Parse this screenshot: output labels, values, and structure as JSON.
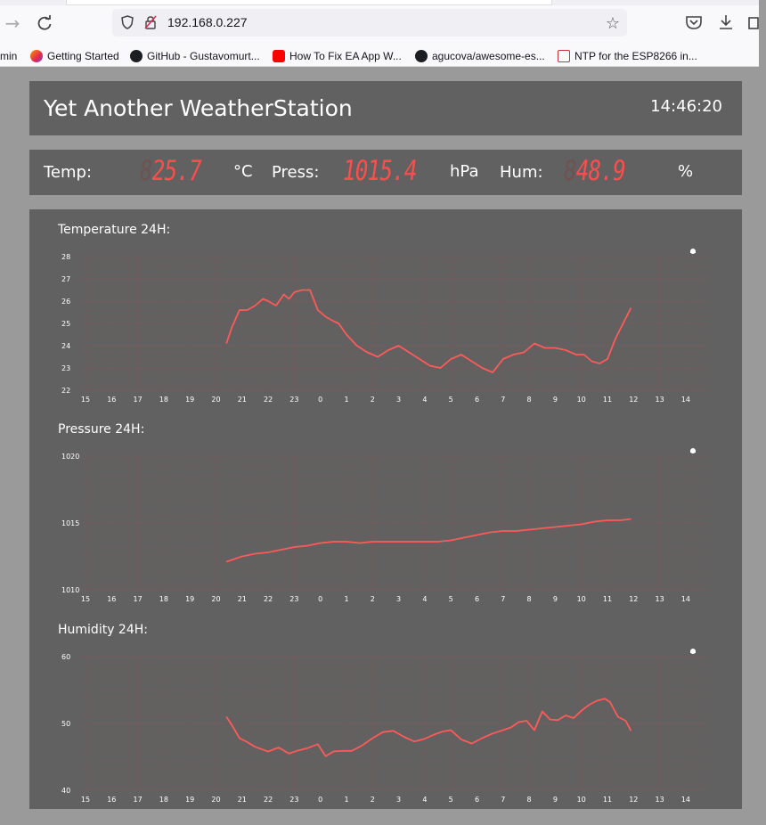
{
  "browser": {
    "url": "192.168.0.227",
    "bookmarks": [
      {
        "label": "min",
        "icon": "none"
      },
      {
        "label": "Getting Started",
        "icon": "firefox-icon"
      },
      {
        "label": "GitHub - Gustavomurt...",
        "icon": "github-icon"
      },
      {
        "label": "How To Fix EA App W...",
        "icon": "youtube-icon"
      },
      {
        "label": "agucova/awesome-es...",
        "icon": "github-icon"
      },
      {
        "label": "NTP for the ESP8266 in...",
        "icon": "site-icon"
      }
    ]
  },
  "app": {
    "title": "Yet Another WeatherStation",
    "time": "14:46:20"
  },
  "readings": {
    "temp": {
      "label": "Temp:",
      "ghost": "8",
      "value": "25.7",
      "unit": "°C"
    },
    "press": {
      "label": "Press:",
      "ghost": "",
      "value": "1015.4",
      "unit": "hPa"
    },
    "hum": {
      "label": "Hum:",
      "ghost": "8",
      "value": "48.9",
      "unit": "%"
    }
  },
  "colors": {
    "line": "#ff5a5a",
    "panel": "#616161",
    "page": "#9a9a9a",
    "grid": "#7a5a5a"
  },
  "hours": [
    "15",
    "16",
    "17",
    "18",
    "19",
    "20",
    "21",
    "22",
    "23",
    "0",
    "1",
    "2",
    "3",
    "4",
    "5",
    "6",
    "7",
    "8",
    "9",
    "10",
    "11",
    "12",
    "13",
    "14"
  ],
  "chart_data": [
    {
      "type": "line",
      "title": "Temperature 24H:",
      "x_labels": [
        "15",
        "16",
        "17",
        "18",
        "19",
        "20",
        "21",
        "22",
        "23",
        "0",
        "1",
        "2",
        "3",
        "4",
        "5",
        "6",
        "7",
        "8",
        "9",
        "10",
        "11",
        "12",
        "13",
        "14"
      ],
      "ylim": [
        22,
        28
      ],
      "yticks": [
        22,
        23,
        24,
        25,
        26,
        27,
        28
      ],
      "grid": true,
      "x": [
        20.4,
        20.6,
        20.9,
        21.2,
        21.5,
        21.8,
        22.0,
        22.3,
        22.6,
        22.8,
        23.0,
        23.3,
        23.6,
        23.9,
        24.2,
        24.5,
        24.7,
        25.0,
        25.4,
        25.8,
        26.2,
        26.6,
        27.0,
        27.4,
        27.8,
        28.2,
        28.6,
        29.0,
        29.4,
        29.8,
        30.2,
        30.6,
        31.0,
        31.4,
        31.8,
        32.2,
        32.6,
        33.0,
        33.4,
        33.8,
        34.1,
        34.4,
        34.7,
        35.0,
        35.3,
        35.6,
        35.9
      ],
      "y": [
        24.1,
        24.8,
        25.6,
        25.6,
        25.8,
        26.1,
        26.0,
        25.8,
        26.3,
        26.1,
        26.4,
        26.5,
        26.5,
        25.6,
        25.3,
        25.1,
        25.0,
        24.5,
        24.0,
        23.7,
        23.5,
        23.8,
        24.0,
        23.7,
        23.4,
        23.1,
        23.0,
        23.4,
        23.6,
        23.3,
        23.0,
        22.8,
        23.4,
        23.6,
        23.7,
        24.1,
        23.9,
        23.9,
        23.8,
        23.6,
        23.6,
        23.3,
        23.2,
        23.4,
        24.3,
        25.0,
        25.7
      ],
      "xlabel": "",
      "ylabel": ""
    },
    {
      "type": "line",
      "title": "Pressure 24H:",
      "x_labels": [
        "15",
        "16",
        "17",
        "18",
        "19",
        "20",
        "21",
        "22",
        "23",
        "0",
        "1",
        "2",
        "3",
        "4",
        "5",
        "6",
        "7",
        "8",
        "9",
        "10",
        "11",
        "12",
        "13",
        "14"
      ],
      "ylim": [
        1010,
        1020
      ],
      "yticks": [
        1010,
        1015,
        1020
      ],
      "grid": true,
      "x": [
        20.4,
        21.0,
        21.5,
        22.0,
        22.5,
        23.0,
        23.5,
        24.0,
        24.5,
        25.0,
        25.5,
        26.0,
        26.5,
        27.0,
        27.5,
        28.0,
        28.5,
        29.0,
        29.5,
        30.0,
        30.5,
        31.0,
        31.5,
        32.0,
        32.5,
        33.0,
        33.5,
        34.0,
        34.5,
        35.0,
        35.5,
        35.9
      ],
      "y": [
        1012.1,
        1012.5,
        1012.7,
        1012.8,
        1013.0,
        1013.2,
        1013.3,
        1013.5,
        1013.6,
        1013.6,
        1013.5,
        1013.6,
        1013.6,
        1013.6,
        1013.6,
        1013.6,
        1013.6,
        1013.7,
        1013.9,
        1014.1,
        1014.3,
        1014.4,
        1014.4,
        1014.5,
        1014.6,
        1014.7,
        1014.8,
        1014.9,
        1015.1,
        1015.2,
        1015.2,
        1015.3
      ],
      "xlabel": "",
      "ylabel": ""
    },
    {
      "type": "line",
      "title": "Humidity 24H:",
      "x_labels": [
        "15",
        "16",
        "17",
        "18",
        "19",
        "20",
        "21",
        "22",
        "23",
        "0",
        "1",
        "2",
        "3",
        "4",
        "5",
        "6",
        "7",
        "8",
        "9",
        "10",
        "11",
        "12",
        "13",
        "14"
      ],
      "ylim": [
        40,
        60
      ],
      "yticks": [
        40,
        50,
        60
      ],
      "grid": true,
      "x": [
        20.4,
        20.6,
        20.9,
        21.2,
        21.5,
        22.0,
        22.4,
        22.8,
        23.1,
        23.5,
        23.9,
        24.2,
        24.5,
        24.8,
        25.2,
        25.6,
        26.0,
        26.4,
        26.8,
        27.2,
        27.6,
        28.0,
        28.4,
        28.7,
        29.0,
        29.4,
        29.8,
        30.2,
        30.6,
        31.0,
        31.3,
        31.6,
        31.9,
        32.2,
        32.5,
        32.8,
        33.1,
        33.4,
        33.7,
        34.0,
        34.3,
        34.6,
        34.9,
        35.1,
        35.4,
        35.7,
        35.9
      ],
      "y": [
        51.0,
        49.8,
        47.8,
        47.2,
        46.5,
        45.8,
        46.4,
        45.5,
        45.9,
        46.3,
        46.9,
        45.1,
        45.8,
        45.9,
        45.9,
        46.7,
        47.8,
        48.7,
        48.9,
        48.0,
        47.3,
        47.7,
        48.4,
        48.8,
        49.0,
        47.6,
        47.0,
        47.8,
        48.5,
        49.0,
        49.4,
        50.2,
        50.4,
        49.0,
        51.8,
        50.6,
        50.5,
        51.2,
        50.8,
        51.9,
        52.8,
        53.4,
        53.7,
        53.2,
        51.0,
        50.4,
        48.9
      ],
      "xlabel": "",
      "ylabel": ""
    }
  ]
}
